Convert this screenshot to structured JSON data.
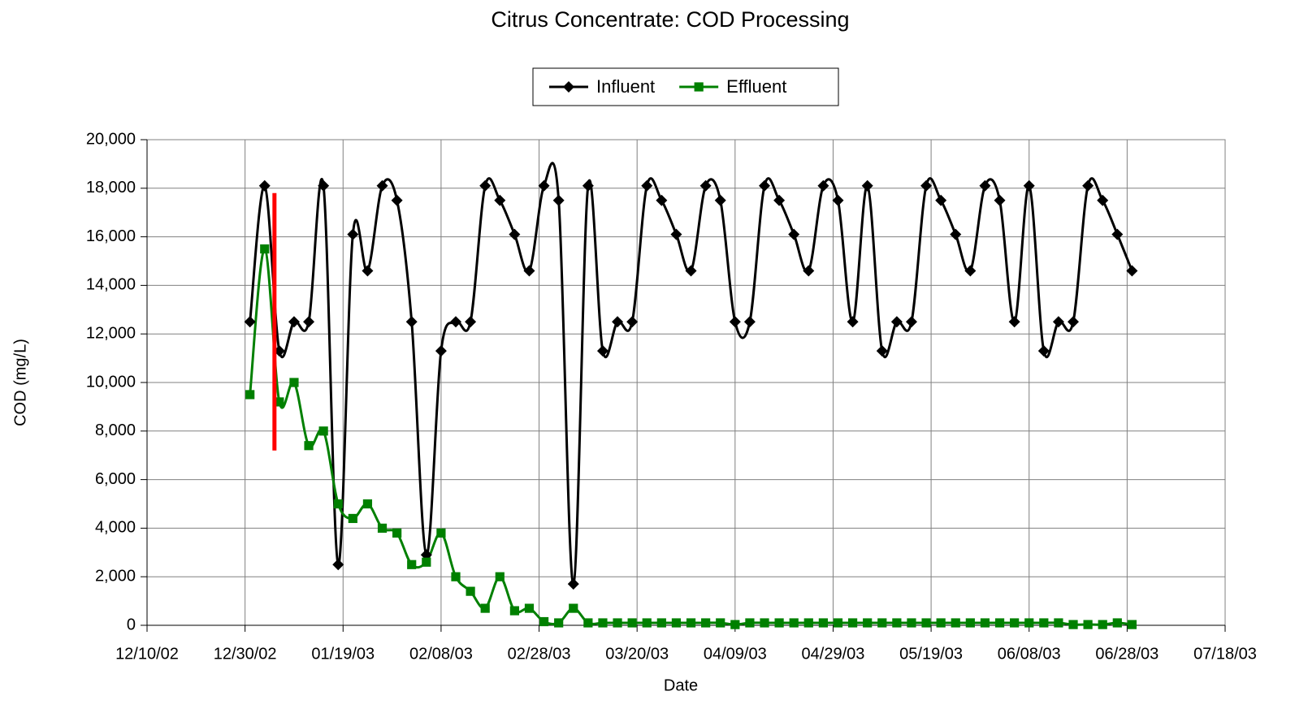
{
  "chart_data": {
    "type": "line",
    "title": "Citrus Concentrate: COD Processing",
    "x_label": "Date",
    "y_label": "COD (mg/L)",
    "legend": "top",
    "grid": true,
    "x": [
      "12/31/02",
      "01/03/03",
      "01/06/03",
      "01/09/03",
      "01/12/03",
      "01/15/03",
      "01/18/03",
      "01/21/03",
      "01/24/03",
      "01/27/03",
      "01/30/03",
      "02/02/03",
      "02/05/03",
      "02/08/03",
      "02/11/03",
      "02/14/03",
      "02/17/03",
      "02/20/03",
      "02/23/03",
      "02/26/03",
      "03/01/03",
      "03/04/03",
      "03/07/03",
      "03/10/03",
      "03/13/03",
      "03/16/03",
      "03/19/03",
      "03/22/03",
      "03/25/03",
      "03/28/03",
      "03/31/03",
      "04/03/03",
      "04/06/03",
      "04/09/03",
      "04/12/03",
      "04/15/03",
      "04/18/03",
      "04/21/03",
      "04/24/03",
      "04/27/03",
      "04/30/03",
      "05/03/03",
      "05/06/03",
      "05/09/03",
      "05/12/03",
      "05/15/03",
      "05/18/03",
      "05/21/03",
      "05/24/03",
      "05/27/03",
      "05/30/03",
      "06/02/03",
      "06/05/03",
      "06/08/03",
      "06/11/03",
      "06/14/03",
      "06/17/03",
      "06/20/03",
      "06/23/03",
      "06/26/03",
      "06/29/03"
    ],
    "series": [
      {
        "name": "Influent",
        "color": "#000000",
        "marker": "diamond",
        "values": [
          12500,
          18100,
          11300,
          12500,
          12500,
          18100,
          2500,
          16100,
          14600,
          18100,
          17500,
          12500,
          2900,
          11300,
          12500,
          12500,
          18100,
          17500,
          16100,
          14600,
          18100,
          17500,
          1700,
          18100,
          11300,
          12500,
          12500,
          18100,
          17500,
          16100,
          14600,
          18100,
          17500,
          12500,
          12500,
          18100,
          17500,
          16100,
          14600,
          18100,
          17500,
          12500,
          18100,
          11300,
          12500,
          12500,
          18100,
          17500,
          16100,
          14600,
          18100,
          17500,
          12500,
          18100,
          11300,
          12500,
          12500,
          18100,
          17500,
          16100,
          14600
        ]
      },
      {
        "name": "Effluent",
        "color": "#008000",
        "marker": "square",
        "values": [
          9500,
          15500,
          9200,
          10000,
          7400,
          8000,
          5000,
          4400,
          5000,
          4000,
          3800,
          2500,
          2600,
          3800,
          2000,
          1400,
          700,
          2000,
          600,
          700,
          150,
          100,
          700,
          100,
          100,
          100,
          100,
          100,
          100,
          100,
          100,
          100,
          100,
          30,
          100,
          100,
          100,
          100,
          100,
          100,
          100,
          100,
          100,
          100,
          100,
          100,
          100,
          100,
          100,
          100,
          100,
          100,
          100,
          100,
          100,
          100,
          30,
          30,
          30,
          100,
          30
        ]
      }
    ],
    "annotation_line": {
      "x": "01/05/03",
      "y": [
        7200,
        17800
      ],
      "color": "#ff0000"
    },
    "xlim": [
      "12/10/02",
      "07/18/03"
    ],
    "xticks": [
      "12/10/02",
      "12/30/02",
      "01/19/03",
      "02/08/03",
      "02/28/03",
      "03/20/03",
      "04/09/03",
      "04/29/03",
      "05/19/03",
      "06/08/03",
      "06/28/03",
      "07/18/03"
    ],
    "ylim": [
      0,
      20000
    ],
    "yticks": [
      0,
      {
        "value": 2000,
        "label": "2,000"
      },
      {
        "value": 4000,
        "label": "4,000"
      },
      {
        "value": 6000,
        "label": "6,000"
      },
      {
        "value": 8000,
        "label": "8,000"
      },
      {
        "value": 10000,
        "label": "10,000"
      },
      {
        "value": 12000,
        "label": "12,000"
      },
      {
        "value": 14000,
        "label": "14,000"
      },
      {
        "value": 16000,
        "label": "16,000"
      },
      {
        "value": 18000,
        "label": "18,000"
      },
      {
        "value": 20000,
        "label": "20,000"
      }
    ]
  }
}
